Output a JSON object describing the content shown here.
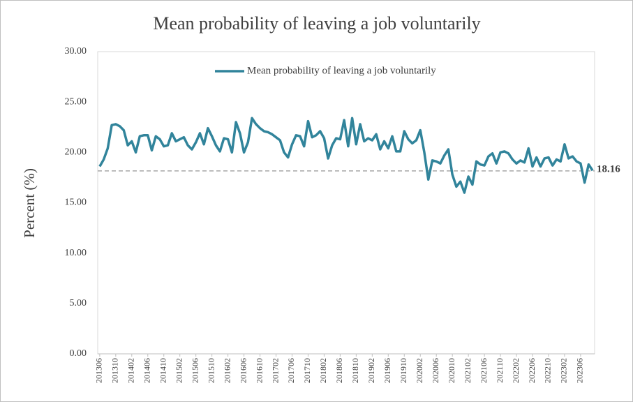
{
  "chart_data": {
    "type": "line",
    "title": "Mean probability of leaving a job voluntarily",
    "y_label": "Percent (%)",
    "categories": [
      "201306",
      null,
      null,
      null,
      "201310",
      null,
      null,
      null,
      "201402",
      null,
      null,
      null,
      "201406",
      null,
      null,
      null,
      "201410",
      null,
      null,
      null,
      "201502",
      null,
      null,
      null,
      "201506",
      null,
      null,
      null,
      "201510",
      null,
      null,
      null,
      "201602",
      null,
      null,
      null,
      "201606",
      null,
      null,
      null,
      "201610",
      null,
      null,
      null,
      "201702",
      null,
      null,
      null,
      "201706",
      null,
      null,
      null,
      "201710",
      null,
      null,
      null,
      "201802",
      null,
      null,
      null,
      "201806",
      null,
      null,
      null,
      "201810",
      null,
      null,
      null,
      "201902",
      null,
      null,
      null,
      "201906",
      null,
      null,
      null,
      "201910",
      null,
      null,
      null,
      "202002",
      null,
      null,
      null,
      "202006",
      null,
      null,
      null,
      "202010",
      null,
      null,
      null,
      "202102",
      null,
      null,
      null,
      "202106",
      null,
      null,
      null,
      "202110",
      null,
      null,
      null,
      "202202",
      null,
      null,
      null,
      "202206",
      null,
      null,
      null,
      "202210",
      null,
      null,
      null,
      "202302",
      null,
      null,
      null,
      "202306",
      null,
      null,
      null
    ],
    "series": [
      {
        "name": "Mean probability of leaving a job voluntarily",
        "color": "#31849b",
        "values": [
          18.6,
          19.3,
          20.4,
          22.7,
          22.8,
          22.6,
          22.2,
          20.7,
          21.1,
          20.0,
          21.6,
          21.7,
          21.7,
          20.2,
          21.6,
          21.3,
          20.6,
          20.7,
          21.9,
          21.1,
          21.3,
          21.5,
          20.7,
          20.3,
          21.0,
          21.9,
          20.8,
          22.4,
          21.6,
          20.7,
          20.1,
          21.4,
          21.3,
          20.0,
          23.0,
          21.9,
          20.0,
          21.0,
          23.4,
          22.8,
          22.4,
          22.1,
          22.0,
          21.8,
          21.5,
          21.2,
          20.0,
          19.5,
          20.8,
          21.7,
          21.6,
          20.6,
          23.1,
          21.5,
          21.7,
          22.1,
          21.4,
          19.4,
          20.7,
          21.4,
          21.3,
          23.2,
          20.6,
          23.4,
          20.8,
          22.8,
          21.1,
          21.4,
          21.2,
          21.8,
          20.3,
          21.1,
          20.4,
          21.6,
          20.1,
          20.1,
          22.1,
          21.3,
          20.9,
          21.2,
          22.2,
          20.0,
          17.3,
          19.2,
          19.1,
          18.9,
          19.7,
          20.3,
          17.8,
          16.6,
          17.1,
          16.0,
          17.6,
          16.8,
          19.1,
          18.8,
          18.7,
          19.6,
          19.9,
          18.9,
          20.0,
          20.1,
          19.9,
          19.3,
          18.9,
          19.2,
          19.0,
          20.4,
          18.6,
          19.5,
          18.6,
          19.4,
          19.5,
          18.7,
          19.3,
          19.1,
          20.8,
          19.4,
          19.6,
          19.1,
          18.9,
          17.0,
          18.8,
          18.2
        ]
      }
    ],
    "reference_value": 18.16,
    "ylim": [
      0,
      30
    ],
    "yticks": [
      {
        "value": 0,
        "label": "0.00"
      },
      {
        "value": 5,
        "label": "5.00"
      },
      {
        "value": 10,
        "label": "10.00"
      },
      {
        "value": 15,
        "label": "15.00"
      },
      {
        "value": 20,
        "label": "20.00"
      },
      {
        "value": 25,
        "label": "25.00"
      },
      {
        "value": 30,
        "label": "30.00"
      }
    ],
    "grid": false,
    "legend": "top"
  }
}
